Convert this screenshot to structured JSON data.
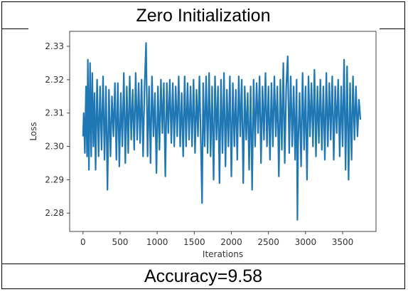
{
  "header": {
    "title": "Zero Initialization"
  },
  "footer": {
    "caption": "Accuracy=9.58"
  },
  "chart_data": {
    "type": "line",
    "title": "",
    "xlabel": "Iterations",
    "ylabel": "Loss",
    "xlim": [
      -180,
      3950
    ],
    "ylim": [
      2.2745,
      2.3345
    ],
    "xticks": [
      0,
      500,
      1000,
      1500,
      2000,
      2500,
      3000,
      3500
    ],
    "xtick_labels": [
      "0",
      "500",
      "1000",
      "1500",
      "2000",
      "2500",
      "3000",
      "3500"
    ],
    "yticks": [
      2.28,
      2.29,
      2.3,
      2.31,
      2.32,
      2.33
    ],
    "ytick_labels": [
      "2.28",
      "2.29",
      "2.30",
      "2.31",
      "2.32",
      "2.33"
    ],
    "grid": false,
    "legend": "none",
    "series_color": "#1f77b4",
    "series": [
      {
        "x": [
          0,
          10,
          25,
          40,
          55,
          65,
          80,
          95,
          110,
          125,
          140,
          155,
          170,
          190,
          210,
          230,
          250,
          270,
          290,
          310,
          330,
          350,
          370,
          390,
          410,
          430,
          450,
          470,
          490,
          510,
          530,
          550,
          570,
          590,
          610,
          630,
          650,
          670,
          690,
          710,
          730,
          750,
          770,
          790,
          810,
          830,
          850,
          870,
          890,
          910,
          930,
          950,
          970,
          990,
          1010,
          1030,
          1050,
          1070,
          1090,
          1110,
          1130,
          1150,
          1170,
          1190,
          1210,
          1230,
          1250,
          1270,
          1290,
          1310,
          1330,
          1350,
          1370,
          1390,
          1410,
          1430,
          1450,
          1470,
          1490,
          1510,
          1530,
          1550,
          1570,
          1590,
          1605,
          1620,
          1640,
          1660,
          1680,
          1700,
          1720,
          1740,
          1760,
          1780,
          1800,
          1820,
          1840,
          1860,
          1880,
          1900,
          1920,
          1940,
          1960,
          1980,
          2000,
          2020,
          2040,
          2060,
          2080,
          2100,
          2120,
          2140,
          2160,
          2180,
          2200,
          2220,
          2240,
          2260,
          2280,
          2300,
          2320,
          2340,
          2360,
          2380,
          2400,
          2420,
          2440,
          2460,
          2480,
          2500,
          2520,
          2540,
          2560,
          2580,
          2600,
          2620,
          2640,
          2660,
          2680,
          2700,
          2720,
          2740,
          2760,
          2780,
          2800,
          2820,
          2840,
          2860,
          2880,
          2890,
          2900,
          2920,
          2940,
          2960,
          2980,
          3000,
          3020,
          3040,
          3060,
          3080,
          3100,
          3120,
          3140,
          3160,
          3180,
          3200,
          3220,
          3240,
          3260,
          3280,
          3300,
          3320,
          3340,
          3360,
          3380,
          3400,
          3420,
          3440,
          3460,
          3480,
          3500,
          3520,
          3540,
          3560,
          3580,
          3600,
          3620,
          3640,
          3660,
          3680,
          3700,
          3720,
          3740
        ],
        "y": [
          2.303,
          2.31,
          2.298,
          2.318,
          2.297,
          2.326,
          2.293,
          2.325,
          2.297,
          2.322,
          2.3,
          2.316,
          2.293,
          2.32,
          2.297,
          2.318,
          2.299,
          2.321,
          2.296,
          2.318,
          2.287,
          2.317,
          2.297,
          2.315,
          2.303,
          2.319,
          2.296,
          2.319,
          2.294,
          2.316,
          2.3,
          2.322,
          2.295,
          2.318,
          2.298,
          2.321,
          2.302,
          2.317,
          2.299,
          2.322,
          2.302,
          2.319,
          2.301,
          2.32,
          2.297,
          2.318,
          2.331,
          2.297,
          2.318,
          2.295,
          2.321,
          2.303,
          2.316,
          2.292,
          2.318,
          2.299,
          2.32,
          2.304,
          2.319,
          2.291,
          2.319,
          2.304,
          2.32,
          2.301,
          2.319,
          2.3,
          2.318,
          2.303,
          2.321,
          2.3,
          2.316,
          2.297,
          2.321,
          2.3,
          2.319,
          2.302,
          2.318,
          2.3,
          2.32,
          2.298,
          2.317,
          2.303,
          2.321,
          2.3,
          2.283,
          2.319,
          2.3,
          2.321,
          2.298,
          2.322,
          2.297,
          2.318,
          2.29,
          2.321,
          2.302,
          2.318,
          2.289,
          2.32,
          2.298,
          2.322,
          2.294,
          2.317,
          2.3,
          2.321,
          2.291,
          2.319,
          2.3,
          2.317,
          2.296,
          2.321,
          2.303,
          2.32,
          2.289,
          2.318,
          2.302,
          2.316,
          2.293,
          2.318,
          2.287,
          2.32,
          2.3,
          2.319,
          2.304,
          2.321,
          2.295,
          2.318,
          2.302,
          2.322,
          2.3,
          2.318,
          2.296,
          2.319,
          2.3,
          2.321,
          2.303,
          2.318,
          2.291,
          2.32,
          2.299,
          2.325,
          2.295,
          2.318,
          2.327,
          2.298,
          2.321,
          2.3,
          2.318,
          2.296,
          2.32,
          2.278,
          2.3,
          2.316,
          2.294,
          2.322,
          2.299,
          2.318,
          2.29,
          2.321,
          2.303,
          2.319,
          2.3,
          2.323,
          2.297,
          2.318,
          2.301,
          2.32,
          2.299,
          2.318,
          2.296,
          2.322,
          2.3,
          2.319,
          2.302,
          2.321,
          2.296,
          2.318,
          2.304,
          2.32,
          2.297,
          2.318,
          2.3,
          2.326,
          2.293,
          2.324,
          2.29,
          2.319,
          2.296,
          2.321,
          2.302,
          2.318,
          2.303,
          2.314,
          2.308
        ]
      }
    ]
  }
}
